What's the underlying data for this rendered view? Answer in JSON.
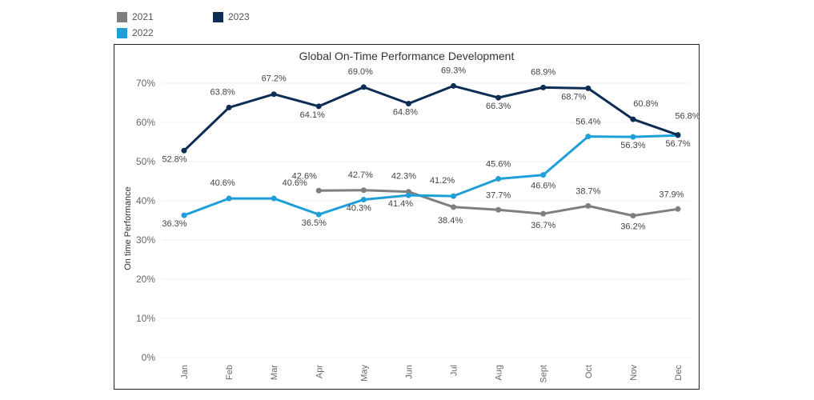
{
  "legend": [
    {
      "label": "2021",
      "color": "#7f7f7f"
    },
    {
      "label": "2022",
      "color": "#1f9fd8"
    },
    {
      "label": "2023",
      "color": "#0d2d55"
    }
  ],
  "chart_data": {
    "type": "line",
    "title": "Global On-Time Performance Development",
    "xlabel": "",
    "ylabel": "On time Performance",
    "categories": [
      "Jan",
      "Feb",
      "Mar",
      "Apr",
      "May",
      "Jun",
      "Jul",
      "Aug",
      "Sept",
      "Oct",
      "Nov",
      "Dec"
    ],
    "ylim": [
      0,
      70
    ],
    "yticks": [
      "0%",
      "10%",
      "20%",
      "30%",
      "40%",
      "50%",
      "60%",
      "70%"
    ],
    "grid": true,
    "legend_position": "top-left",
    "series": [
      {
        "name": "2021",
        "color": "#7f7f7f",
        "values": [
          null,
          null,
          null,
          42.6,
          42.7,
          42.3,
          38.4,
          37.7,
          36.7,
          38.7,
          36.2,
          37.9
        ],
        "labels": [
          null,
          null,
          null,
          "42.6%",
          "42.7%",
          "42.3%",
          "38.4%",
          "37.7%",
          "36.7%",
          "38.7%",
          "36.2%",
          "37.9%"
        ]
      },
      {
        "name": "2022",
        "color": "#1f9fd8",
        "values": [
          36.3,
          40.6,
          40.6,
          36.5,
          40.3,
          41.4,
          41.2,
          45.6,
          46.6,
          56.4,
          56.3,
          56.7
        ],
        "labels": [
          "36.3%",
          "40.6%",
          "40.6%",
          "36.5%",
          "40.3%",
          "41.4%",
          "41.2%",
          "45.6%",
          "46.6%",
          "56.4%",
          "56.3%",
          "56.7%"
        ]
      },
      {
        "name": "2023",
        "color": "#0d2d55",
        "values": [
          52.8,
          63.8,
          67.2,
          64.1,
          69.0,
          64.8,
          69.3,
          66.3,
          68.9,
          68.7,
          60.8,
          56.8
        ],
        "labels": [
          "52.8%",
          "63.8%",
          "67.2%",
          "64.1%",
          "69.0%",
          "64.8%",
          "69.3%",
          "66.3%",
          "68.9%",
          "68.7%",
          "60.8%",
          "56.8%"
        ]
      }
    ]
  }
}
